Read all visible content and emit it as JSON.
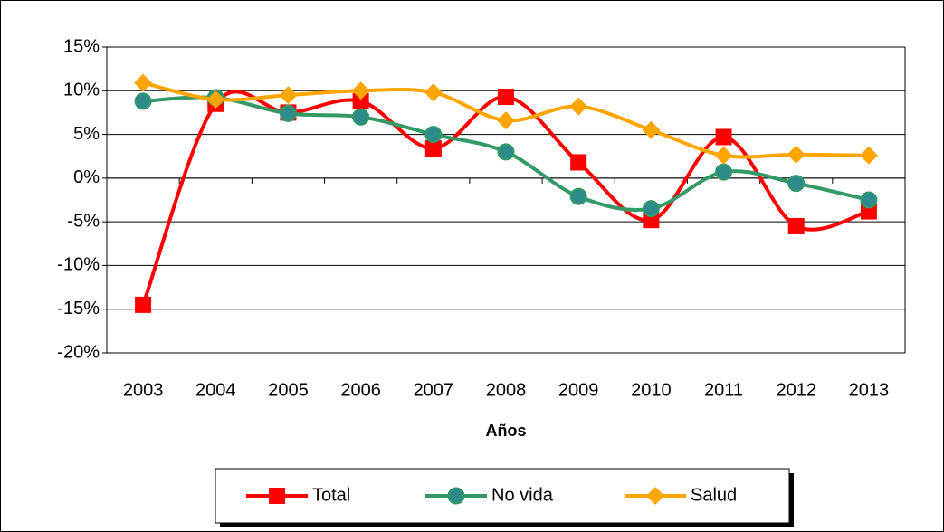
{
  "chart_data": {
    "type": "line",
    "smooth": true,
    "grid": true,
    "legend": "bottom",
    "x_label": "Años",
    "categories": [
      "2003",
      "2004",
      "2005",
      "2006",
      "2007",
      "2008",
      "2009",
      "2010",
      "2011",
      "2012",
      "2013"
    ],
    "series": [
      {
        "name": "Total",
        "color": "#ff0000",
        "marker": "square",
        "values": [
          -14.5,
          8.5,
          7.5,
          8.8,
          3.4,
          9.3,
          1.8,
          -4.8,
          4.7,
          -5.5,
          -3.8
        ]
      },
      {
        "name": "No vida",
        "color": "#339966",
        "marker": "circle",
        "values": [
          8.8,
          9.2,
          7.4,
          7.0,
          5.0,
          3.0,
          -2.1,
          -3.5,
          0.7,
          -0.6,
          -2.5
        ]
      },
      {
        "name": "Salud",
        "color": "#ffa500",
        "marker": "diamond",
        "values": [
          10.9,
          9.0,
          9.5,
          10.0,
          9.8,
          6.6,
          8.2,
          5.5,
          2.6,
          2.7,
          2.6
        ]
      }
    ],
    "ylim": [
      -20,
      15
    ],
    "yticks": [
      {
        "value": -20,
        "label": "-20%"
      },
      {
        "value": -15,
        "label": "-15%"
      },
      {
        "value": -10,
        "label": "-10%"
      },
      {
        "value": -5,
        "label": "-5%"
      },
      {
        "value": 0,
        "label": "0%"
      },
      {
        "value": 5,
        "label": "5%"
      },
      {
        "value": 10,
        "label": "10%"
      },
      {
        "value": 15,
        "label": "15%"
      }
    ]
  }
}
